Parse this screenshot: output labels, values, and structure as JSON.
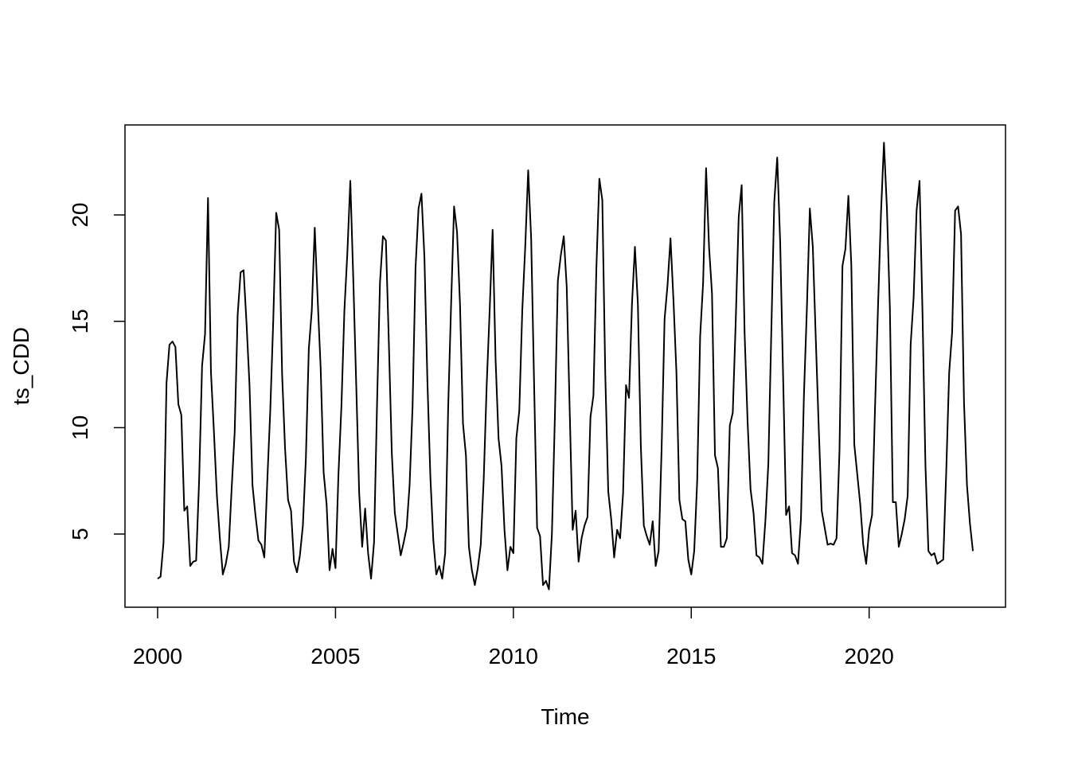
{
  "chart_data": {
    "type": "line",
    "x_label": "Time",
    "y_label": "ts_CDD",
    "color": "#000000",
    "xlim": [
      1999.0833,
      2023.8333
    ],
    "ylim": [
      1.56,
      24.23
    ],
    "xticks": [
      2000,
      2005,
      2010,
      2015,
      2020
    ],
    "yticks": [
      5,
      10,
      15,
      20
    ],
    "x": [
      2000,
      2000.0833,
      2000.1667,
      2000.25,
      2000.3333,
      2000.4167,
      2000.5,
      2000.5833,
      2000.6667,
      2000.75,
      2000.8333,
      2000.9167,
      2001,
      2001.0833,
      2001.1667,
      2001.25,
      2001.3333,
      2001.4167,
      2001.5,
      2001.5833,
      2001.6667,
      2001.75,
      2001.8333,
      2001.9167,
      2002,
      2002.0833,
      2002.1667,
      2002.25,
      2002.3333,
      2002.4167,
      2002.5,
      2002.5833,
      2002.6667,
      2002.75,
      2002.8333,
      2002.9167,
      2003,
      2003.0833,
      2003.1667,
      2003.25,
      2003.3333,
      2003.4167,
      2003.5,
      2003.5833,
      2003.6667,
      2003.75,
      2003.8333,
      2003.9167,
      2004,
      2004.0833,
      2004.1667,
      2004.25,
      2004.3333,
      2004.4167,
      2004.5,
      2004.5833,
      2004.6667,
      2004.75,
      2004.8333,
      2004.9167,
      2005,
      2005.0833,
      2005.1667,
      2005.25,
      2005.3333,
      2005.4167,
      2005.5,
      2005.5833,
      2005.6667,
      2005.75,
      2005.8333,
      2005.9167,
      2006,
      2006.0833,
      2006.1667,
      2006.25,
      2006.3333,
      2006.4167,
      2006.5,
      2006.5833,
      2006.6667,
      2006.75,
      2006.8333,
      2006.9167,
      2007,
      2007.0833,
      2007.1667,
      2007.25,
      2007.3333,
      2007.4167,
      2007.5,
      2007.5833,
      2007.6667,
      2007.75,
      2007.8333,
      2007.9167,
      2008,
      2008.0833,
      2008.1667,
      2008.25,
      2008.3333,
      2008.4167,
      2008.5,
      2008.5833,
      2008.6667,
      2008.75,
      2008.8333,
      2008.9167,
      2009,
      2009.0833,
      2009.1667,
      2009.25,
      2009.3333,
      2009.4167,
      2009.5,
      2009.5833,
      2009.6667,
      2009.75,
      2009.8333,
      2009.9167,
      2010,
      2010.0833,
      2010.1667,
      2010.25,
      2010.3333,
      2010.4167,
      2010.5,
      2010.5833,
      2010.6667,
      2010.75,
      2010.8333,
      2010.9167,
      2011,
      2011.0833,
      2011.1667,
      2011.25,
      2011.3333,
      2011.4167,
      2011.5,
      2011.5833,
      2011.6667,
      2011.75,
      2011.8333,
      2011.9167,
      2012,
      2012.0833,
      2012.1667,
      2012.25,
      2012.3333,
      2012.4167,
      2012.5,
      2012.5833,
      2012.6667,
      2012.75,
      2012.8333,
      2012.9167,
      2013,
      2013.0833,
      2013.1667,
      2013.25,
      2013.3333,
      2013.4167,
      2013.5,
      2013.5833,
      2013.6667,
      2013.75,
      2013.8333,
      2013.9167,
      2014,
      2014.0833,
      2014.1667,
      2014.25,
      2014.3333,
      2014.4167,
      2014.5,
      2014.5833,
      2014.6667,
      2014.75,
      2014.8333,
      2014.9167,
      2015,
      2015.0833,
      2015.1667,
      2015.25,
      2015.3333,
      2015.4167,
      2015.5,
      2015.5833,
      2015.6667,
      2015.75,
      2015.8333,
      2015.9167,
      2016,
      2016.0833,
      2016.1667,
      2016.25,
      2016.3333,
      2016.4167,
      2016.5,
      2016.5833,
      2016.6667,
      2016.75,
      2016.8333,
      2016.9167,
      2017,
      2017.0833,
      2017.1667,
      2017.25,
      2017.3333,
      2017.4167,
      2017.5,
      2017.5833,
      2017.6667,
      2017.75,
      2017.8333,
      2017.9167,
      2018,
      2018.0833,
      2018.1667,
      2018.25,
      2018.3333,
      2018.4167,
      2018.5,
      2018.5833,
      2018.6667,
      2018.75,
      2018.8333,
      2018.9167,
      2019,
      2019.0833,
      2019.1667,
      2019.25,
      2019.3333,
      2019.4167,
      2019.5,
      2019.5833,
      2019.6667,
      2019.75,
      2019.8333,
      2019.9167,
      2020,
      2020.0833,
      2020.1667,
      2020.25,
      2020.3333,
      2020.4167,
      2020.5,
      2020.5833,
      2020.6667,
      2020.75,
      2020.8333,
      2020.9167,
      2021,
      2021.0833,
      2021.1667,
      2021.25,
      2021.3333,
      2021.4167,
      2021.5,
      2021.5833,
      2021.6667,
      2021.75,
      2021.8333,
      2021.9167,
      2022,
      2022.0833,
      2022.1667,
      2022.25,
      2022.3333,
      2022.4167,
      2022.5,
      2022.5833,
      2022.6667,
      2022.75,
      2022.8333,
      2022.9167
    ],
    "values": [
      2.9,
      3.0,
      4.6,
      12.1,
      13.9,
      14.05,
      13.8,
      11.1,
      10.6,
      6.1,
      6.3,
      3.5,
      3.7,
      3.75,
      7.5,
      12.9,
      14.4,
      20.8,
      12.6,
      9.8,
      6.8,
      4.8,
      3.1,
      3.6,
      4.4,
      7.2,
      9.8,
      15.3,
      17.3,
      17.4,
      14.9,
      12.0,
      7.3,
      5.9,
      4.7,
      4.5,
      3.9,
      7.5,
      10.8,
      15.0,
      20.1,
      19.3,
      12.5,
      9.0,
      6.6,
      6.1,
      3.7,
      3.2,
      4.0,
      5.4,
      8.5,
      13.7,
      15.5,
      19.4,
      16.0,
      12.8,
      7.9,
      6.4,
      3.3,
      4.3,
      3.4,
      7.8,
      11.0,
      15.5,
      18.2,
      21.6,
      17.0,
      12.0,
      6.9,
      4.4,
      6.2,
      4.1,
      2.9,
      4.6,
      11.0,
      16.8,
      19.0,
      18.8,
      14.0,
      8.8,
      6.0,
      5.0,
      4.0,
      4.6,
      5.3,
      7.3,
      11.0,
      17.5,
      20.3,
      21.0,
      18.0,
      12.2,
      7.7,
      4.7,
      3.1,
      3.5,
      2.9,
      4.1,
      10.9,
      15.8,
      20.4,
      19.2,
      15.8,
      10.2,
      8.7,
      4.4,
      3.3,
      2.6,
      3.4,
      4.5,
      7.6,
      12.0,
      15.5,
      19.3,
      13.2,
      9.5,
      8.2,
      5.2,
      3.3,
      4.4,
      4.1,
      9.5,
      10.8,
      15.5,
      18.5,
      22.1,
      18.9,
      12.0,
      5.3,
      4.9,
      2.6,
      2.8,
      2.4,
      5.0,
      10.5,
      16.9,
      18.1,
      19.0,
      16.6,
      10.8,
      5.2,
      6.1,
      3.7,
      4.8,
      5.4,
      5.8,
      10.5,
      11.5,
      17.5,
      21.7,
      20.7,
      12.5,
      7.0,
      5.7,
      3.9,
      5.2,
      4.8,
      6.9,
      12.0,
      11.4,
      15.8,
      18.5,
      15.8,
      9.1,
      5.4,
      4.9,
      4.5,
      5.6,
      3.5,
      4.2,
      9.0,
      15.1,
      16.7,
      18.9,
      16.0,
      12.6,
      6.6,
      5.7,
      5.6,
      3.8,
      3.1,
      4.2,
      7.5,
      14.3,
      16.8,
      22.2,
      18.5,
      16.3,
      8.7,
      8.1,
      4.4,
      4.4,
      4.8,
      10.1,
      10.7,
      15.0,
      19.9,
      21.4,
      14.4,
      10.3,
      7.1,
      6.0,
      4.0,
      3.9,
      3.6,
      5.6,
      8.3,
      14.5,
      20.6,
      22.7,
      18.7,
      12.3,
      5.9,
      6.3,
      4.1,
      4.0,
      3.6,
      5.7,
      11.5,
      15.6,
      20.3,
      18.5,
      14.2,
      10.0,
      6.1,
      5.3,
      4.5,
      4.55,
      4.5,
      4.8,
      8.9,
      17.6,
      18.4,
      20.9,
      17.6,
      9.2,
      7.8,
      6.4,
      4.5,
      3.6,
      5.2,
      5.9,
      11.0,
      15.7,
      20.1,
      23.4,
      20.3,
      15.6,
      6.5,
      6.5,
      4.4,
      5.0,
      5.7,
      6.8,
      13.9,
      16.1,
      20.2,
      21.6,
      15.4,
      8.2,
      4.2,
      4.0,
      4.1,
      3.6,
      3.7,
      3.8,
      7.9,
      12.6,
      14.5,
      20.2,
      20.4,
      19.1,
      11.2,
      7.3,
      5.5,
      4.2
    ]
  }
}
